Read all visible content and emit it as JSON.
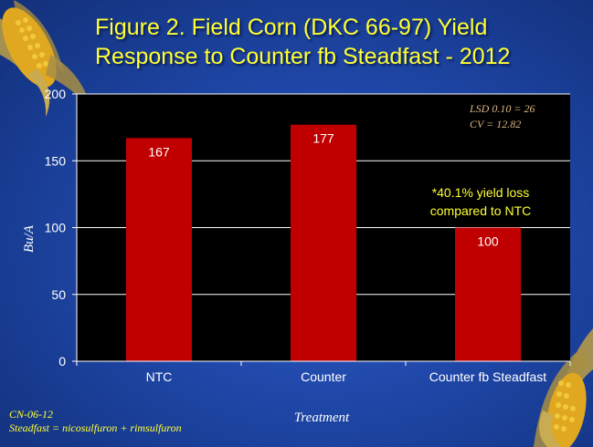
{
  "slide": {
    "title_line1": "Figure 2. Field Corn (DKC 66-97) Yield",
    "title_line2": "Response to Counter fb Steadfast - 2012",
    "footnote_line1": "CN-06-12",
    "footnote_line2": "Steadfast = nicosulfuron + rimsulfuron",
    "colors": {
      "background": "#1f47a8",
      "title": "#ffff33",
      "plot_area": "#000000",
      "bar": "#c00000",
      "stats_text": "#d9b382"
    },
    "decorations": [
      "corn-cob-icon",
      "corn-cob-icon"
    ]
  },
  "chart_data": {
    "type": "bar",
    "categories": [
      "NTC",
      "Counter",
      "Counter fb Steadfast"
    ],
    "values": [
      167,
      177,
      100
    ],
    "data_labels": [
      "167",
      "177",
      "100"
    ],
    "ylabel": "Bu/A",
    "xlabel": "Treatment",
    "ylim": [
      0,
      200
    ],
    "yticks": [
      0,
      50,
      100,
      150,
      200
    ],
    "grid": true,
    "annotation_line1": "*40.1% yield loss",
    "annotation_line2": "compared to NTC",
    "stats_line1": "LSD 0.10 = 26",
    "stats_line2": "CV = 12.82"
  }
}
